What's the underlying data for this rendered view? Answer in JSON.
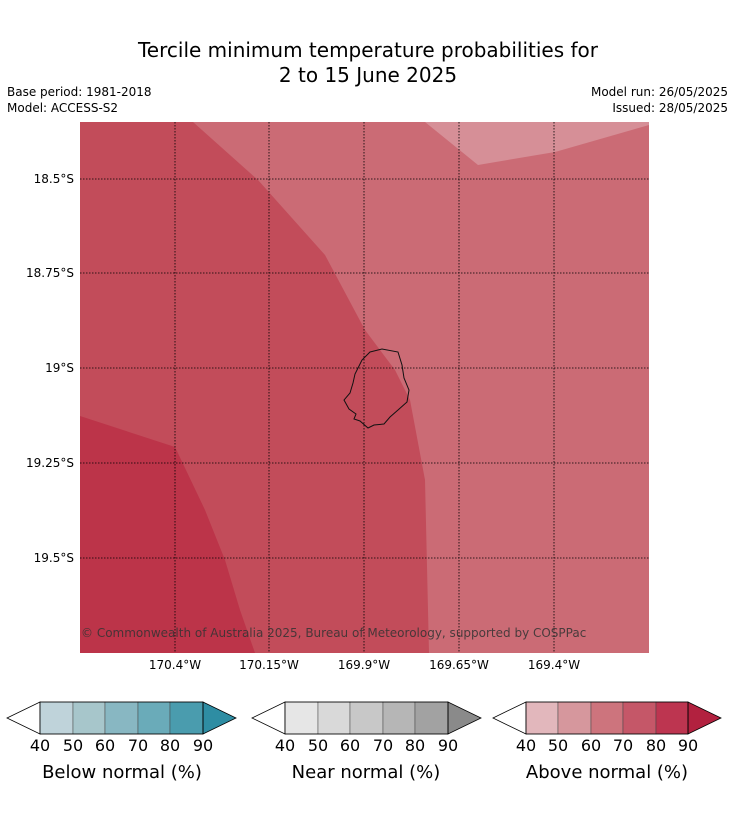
{
  "title": {
    "line1": "Tercile minimum temperature probabilities for",
    "line2": "2 to 15 June 2025"
  },
  "info": {
    "base_period": "Base period: 1981-2018",
    "model": "Model: ACCESS-S2",
    "model_run": "Model run: 26/05/2025",
    "issued": "Issued: 28/05/2025"
  },
  "map": {
    "latitude_labels": [
      "18.5°S",
      "18.75°S",
      "19°S",
      "19.25°S",
      "19.5°S"
    ],
    "longitude_labels": [
      "170.4°W",
      "170.15°W",
      "169.9°W",
      "169.65°W",
      "169.4°W"
    ],
    "copyright": "© Commonwealth of Australia 2025, Bureau of Meteorology, supported by COSPPac",
    "region_classes": [
      {
        "category": "Above normal",
        "range": "80-90",
        "color": "#bc3449"
      },
      {
        "category": "Above normal",
        "range": "70-80",
        "color": "#c24c5a"
      },
      {
        "category": "Above normal",
        "range": "60-70",
        "color": "#cb6b75"
      },
      {
        "category": "Above normal",
        "range": "50-60",
        "color": "#d68f97"
      }
    ],
    "island_outline": "coastline"
  },
  "colorbars": [
    {
      "title": "Below normal (%)",
      "ticks": [
        "40",
        "50",
        "60",
        "70",
        "80",
        "90"
      ],
      "colors": [
        "#bfd3da",
        "#a7c6cb",
        "#88b7c2",
        "#6aabb9",
        "#4a9cae",
        "#2e8da3"
      ]
    },
    {
      "title": "Near normal (%)",
      "ticks": [
        "40",
        "50",
        "60",
        "70",
        "80",
        "90"
      ],
      "colors": [
        "#e6e6e6",
        "#d9d9d9",
        "#c8c8c8",
        "#b6b6b6",
        "#a2a2a2",
        "#8a8a8a"
      ]
    },
    {
      "title": "Above normal (%)",
      "ticks": [
        "40",
        "50",
        "60",
        "70",
        "80",
        "90"
      ],
      "colors": [
        "#e2b7bc",
        "#d6979d",
        "#cd747d",
        "#c55768",
        "#bd3550",
        "#b2213f"
      ]
    }
  ]
}
